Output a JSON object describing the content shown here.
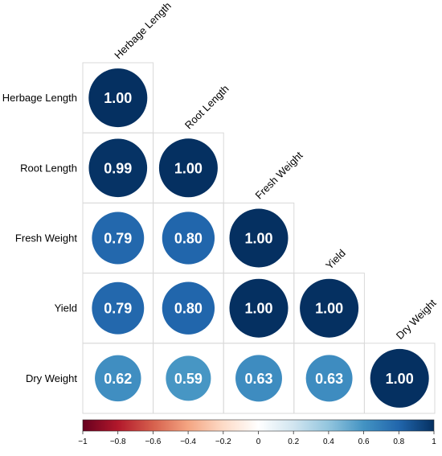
{
  "chart_data": {
    "type": "heatmap",
    "variables": [
      "Herbage Length",
      "Root Length",
      "Fresh Weight",
      "Yield",
      "Dry Weight"
    ],
    "matrix": [
      [
        1.0,
        null,
        null,
        null,
        null
      ],
      [
        0.99,
        1.0,
        null,
        null,
        null
      ],
      [
        0.79,
        0.8,
        1.0,
        null,
        null
      ],
      [
        0.79,
        0.8,
        1.0,
        1.0,
        null
      ],
      [
        0.62,
        0.59,
        0.63,
        0.63,
        1.0
      ]
    ],
    "value_labels": [
      [
        "1.00",
        "",
        "",
        "",
        ""
      ],
      [
        "0.99",
        "1.00",
        "",
        "",
        ""
      ],
      [
        "0.79",
        "0.80",
        "1.00",
        "",
        ""
      ],
      [
        "0.79",
        "0.80",
        "1.00",
        "1.00",
        ""
      ],
      [
        "0.62",
        "0.59",
        "0.63",
        "0.63",
        "1.00"
      ]
    ],
    "layout": "lower-triangle",
    "color_scale": {
      "range": [
        -1,
        1
      ],
      "ticks": [
        "−1",
        "−0.8",
        "−0.6",
        "−0.4",
        "−0.2",
        "0",
        "0.2",
        "0.4",
        "0.6",
        "0.8",
        "1"
      ],
      "stops": [
        "#67001f",
        "#b2182b",
        "#d6604d",
        "#f4a582",
        "#fddbc7",
        "#ffffff",
        "#d1e5f0",
        "#92c5de",
        "#4393c3",
        "#2166ac",
        "#053061"
      ]
    },
    "grid": true,
    "legend_position": "bottom"
  }
}
